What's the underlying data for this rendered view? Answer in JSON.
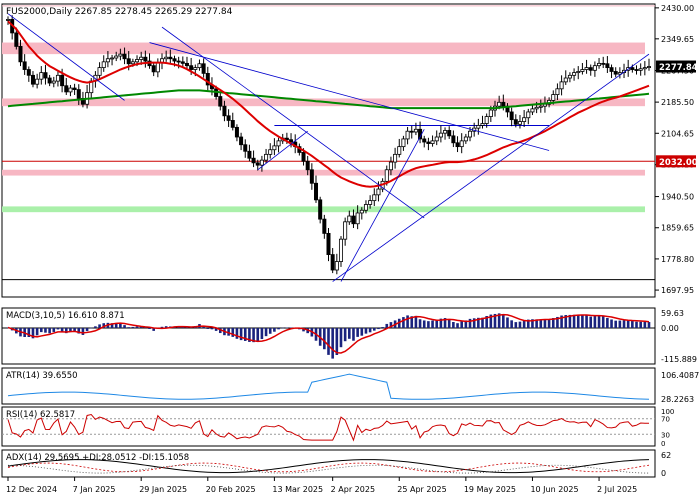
{
  "chart_data": {
    "type": "candlestick",
    "symbol_line": "FUS2000,Daily  2267.85  2278.45  2265.29  2277.84",
    "last_price_tag": "2277.84",
    "level_tag": "2032.00",
    "x_ticks": [
      {
        "label": "12 Dec 2024",
        "bar": 0
      },
      {
        "label": "7 Jan 2025",
        "bar": 16
      },
      {
        "label": "29 Jan 2025",
        "bar": 32
      },
      {
        "label": "20 Feb 2025",
        "bar": 48
      },
      {
        "label": "13 Mar 2025",
        "bar": 64
      },
      {
        "label": "2 Apr 2025",
        "bar": 78
      },
      {
        "label": "25 Apr 2025",
        "bar": 94
      },
      {
        "label": "19 May 2025",
        "bar": 110
      },
      {
        "label": "10 Jun 2025",
        "bar": 126
      },
      {
        "label": "2 Jul 2025",
        "bar": 142
      }
    ],
    "bars_count": 155,
    "price_axis": {
      "min": 1680.0,
      "max": 2440.0,
      "ticks": [
        "2430.00",
        "2349.65",
        "2267.50",
        "2185.50",
        "2104.65",
        "2023.10",
        "1940.50",
        "1859.65",
        "1778.80",
        "1697.95"
      ]
    },
    "closes": [
      2400,
      2365,
      2330,
      2290,
      2270,
      2255,
      2232,
      2245,
      2262,
      2248,
      2235,
      2240,
      2255,
      2228,
      2212,
      2222,
      2218,
      2195,
      2180,
      2210,
      2240,
      2255,
      2275,
      2290,
      2298,
      2300,
      2305,
      2310,
      2298,
      2285,
      2290,
      2296,
      2302,
      2292,
      2280,
      2264,
      2288,
      2298,
      2302,
      2298,
      2292,
      2290,
      2286,
      2280,
      2270,
      2275,
      2285,
      2260,
      2230,
      2220,
      2200,
      2175,
      2150,
      2138,
      2120,
      2095,
      2075,
      2058,
      2040,
      2028,
      2022,
      2035,
      2050,
      2062,
      2072,
      2085,
      2092,
      2088,
      2082,
      2070,
      2055,
      2032,
      2010,
      1975,
      1932,
      1882,
      1845,
      1790,
      1750,
      1772,
      1830,
      1875,
      1890,
      1870,
      1898,
      1905,
      1920,
      1930,
      1945,
      1960,
      1980,
      2010,
      2030,
      2050,
      2070,
      2090,
      2110,
      2108,
      2115,
      2090,
      2082,
      2078,
      2085,
      2095,
      2105,
      2112,
      2098,
      2080,
      2070,
      2085,
      2095,
      2110,
      2118,
      2125,
      2130,
      2148,
      2165,
      2175,
      2185,
      2175,
      2160,
      2140,
      2128,
      2135,
      2145,
      2160,
      2168,
      2172,
      2175,
      2180,
      2190,
      2205,
      2220,
      2238,
      2248,
      2255,
      2262,
      2265,
      2270,
      2275,
      2268,
      2280,
      2286,
      2285,
      2275,
      2265,
      2258,
      2262,
      2268,
      2275,
      2270,
      2268,
      2272,
      2275,
      2277.84
    ],
    "ema_fast": [
      2395,
      2385,
      2375,
      2360,
      2345,
      2330,
      2318,
      2306,
      2296,
      2287,
      2279,
      2273,
      2267,
      2261,
      2255,
      2250,
      2245,
      2241,
      2238,
      2236,
      2238,
      2241,
      2245,
      2250,
      2255,
      2260,
      2265,
      2270,
      2274,
      2278,
      2281,
      2284,
      2286,
      2287,
      2288,
      2288,
      2288,
      2288,
      2287,
      2285,
      2283,
      2280,
      2276,
      2271,
      2265,
      2259,
      2252,
      2245,
      2238,
      2231,
      2224,
      2217,
      2210,
      2202,
      2194,
      2185,
      2176,
      2166,
      2156,
      2146,
      2136,
      2127,
      2118,
      2110,
      2103,
      2096,
      2090,
      2084,
      2078,
      2072,
      2066,
      2060,
      2053,
      2046,
      2038,
      2030,
      2022,
      2014,
      2005,
      1997,
      1990,
      1985,
      1980,
      1976,
      1972,
      1969,
      1967,
      1966,
      1967,
      1969,
      1972,
      1976,
      1981,
      1987,
      1993,
      1999,
      2005,
      2010,
      2014,
      2017,
      2019,
      2021,
      2023,
      2025,
      2027,
      2029,
      2030,
      2030,
      2030,
      2031,
      2032,
      2034,
      2037,
      2040,
      2044,
      2048,
      2053,
      2058,
      2063,
      2068,
      2072,
      2076,
      2079,
      2082,
      2086,
      2090,
      2095,
      2100,
      2105,
      2110,
      2116,
      2122,
      2128,
      2134,
      2140,
      2146,
      2152,
      2158,
      2163,
      2168,
      2173,
      2178,
      2183,
      2187,
      2191,
      2194,
      2197,
      2200,
      2204,
      2208,
      2212,
      2216,
      2220,
      2224,
      2228
    ],
    "ema_slow": [
      2175,
      2176,
      2177,
      2178,
      2179,
      2180,
      2181,
      2182,
      2183,
      2184,
      2185,
      2186,
      2187,
      2188,
      2189,
      2190,
      2191,
      2192,
      2193,
      2194,
      2195,
      2196,
      2197,
      2198,
      2199,
      2200,
      2201,
      2202,
      2203,
      2204,
      2205,
      2206,
      2207,
      2208,
      2209,
      2210,
      2211,
      2212,
      2213,
      2214,
      2215,
      2216,
      2216,
      2216,
      2216,
      2216,
      2216,
      2215,
      2214,
      2213,
      2212,
      2211,
      2210,
      2209,
      2208,
      2207,
      2206,
      2205,
      2204,
      2203,
      2202,
      2201,
      2200,
      2199,
      2198,
      2197,
      2196,
      2195,
      2194,
      2193,
      2192,
      2191,
      2190,
      2189,
      2188,
      2187,
      2186,
      2185,
      2184,
      2183,
      2182,
      2181,
      2180,
      2179,
      2178,
      2177,
      2176,
      2175,
      2174,
      2173,
      2172,
      2171,
      2170,
      2170,
      2170,
      2170,
      2170,
      2170,
      2170,
      2170,
      2170,
      2170,
      2170,
      2170,
      2170,
      2170,
      2170,
      2170,
      2170,
      2170,
      2170,
      2170,
      2170,
      2170,
      2170,
      2170,
      2170,
      2170,
      2171,
      2172,
      2173,
      2174,
      2175,
      2176,
      2177,
      2178,
      2179,
      2180,
      2181,
      2182,
      2183,
      2184,
      2185,
      2186,
      2187,
      2188,
      2189,
      2190,
      2191,
      2192,
      2193,
      2194,
      2195,
      2196,
      2197,
      2198,
      2199,
      2200,
      2201,
      2202,
      2203,
      2204,
      2205,
      2206,
      2207
    ],
    "zones": [
      {
        "from": 2310,
        "to": 2340,
        "color": "#f7b7c3"
      },
      {
        "from": 2175,
        "to": 2195,
        "color": "#f7b7c3"
      },
      {
        "from": 1995,
        "to": 2010,
        "color": "#f7b7c3"
      },
      {
        "from": 1900,
        "to": 1915,
        "color": "#aaf0aa"
      }
    ],
    "hlines": [
      {
        "price": 2032.0,
        "color": "#cc0000"
      },
      {
        "price": 2125.0,
        "color": "#0000cc",
        "from_bar": 64,
        "to_bar": 130
      },
      {
        "price": 1725.0,
        "color": "#000000"
      },
      {
        "price": 2435.0,
        "color": "#f7b7c3"
      }
    ],
    "trendlines": [
      {
        "b1": 0,
        "p1": 2415,
        "b2": 28,
        "p2": 2190,
        "color": "#0000cc"
      },
      {
        "b1": 34,
        "p1": 2340,
        "b2": 130,
        "p2": 2060,
        "color": "#0000cc"
      },
      {
        "b1": 37,
        "p1": 2380,
        "b2": 100,
        "p2": 1885,
        "color": "#0000cc"
      },
      {
        "b1": 60,
        "p1": 2010,
        "b2": 72,
        "p2": 2110,
        "color": "#0000cc"
      },
      {
        "b1": 78,
        "p1": 1720,
        "b2": 154,
        "p2": 2310,
        "color": "#0000cc"
      },
      {
        "b1": 80,
        "p1": 1720,
        "b2": 100,
        "p2": 2115,
        "color": "#0000cc"
      }
    ],
    "panels": [
      {
        "id": "macd",
        "label": "MACD(3,10,5) 16.610 8.871",
        "ticks": [
          "59.63",
          "0.00",
          "-115.889"
        ]
      },
      {
        "id": "atr",
        "label": "ATR(14) 39.6550",
        "ticks": [
          "106.4087",
          "28.2263"
        ]
      },
      {
        "id": "rsi",
        "label": "RSI(14) 62.5817",
        "ticks": [
          "100",
          "70",
          "30",
          "0"
        ]
      },
      {
        "id": "adx",
        "label": "ADX(14) 29.5695 +DI:28.0512 -DI:15.1058",
        "ticks": [
          "62",
          "0"
        ]
      }
    ],
    "colors": {
      "up": "#000000",
      "ema_fast": "#dd0000",
      "ema_slow": "#008800",
      "macd_hist": "#1a237e",
      "signal": "#dd0000",
      "atr": "#1e88e5",
      "rsi": "#cc0000"
    }
  }
}
